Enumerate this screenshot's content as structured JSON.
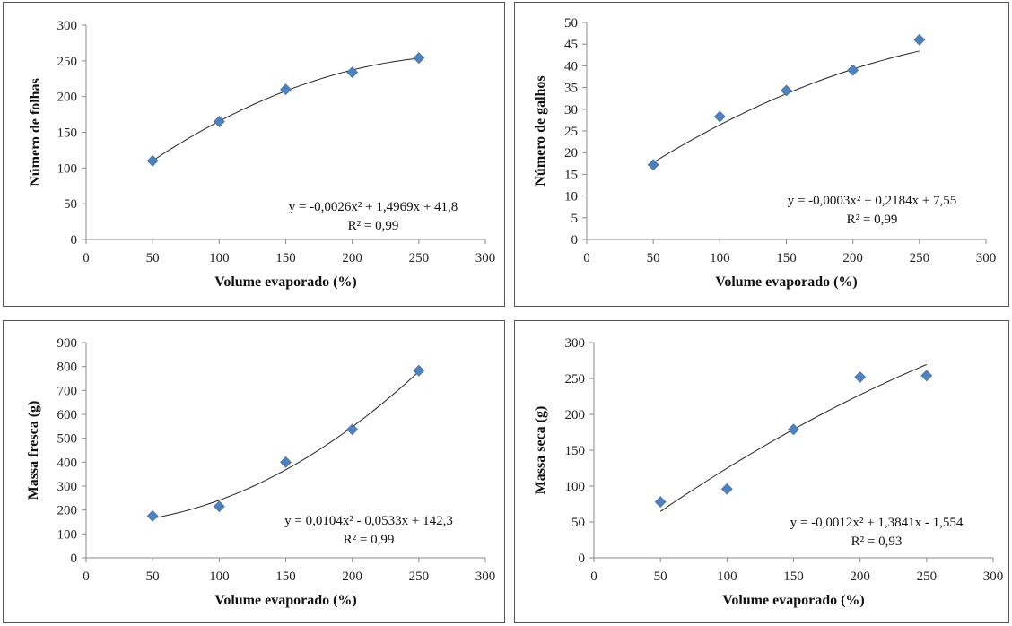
{
  "chart_data": [
    {
      "type": "scatter",
      "xlabel": "Volume evaporado (%)",
      "ylabel": "Número de folhas",
      "xlim": [
        0,
        300
      ],
      "ylim": [
        0,
        300
      ],
      "xticks": [
        "0",
        "50",
        "100",
        "150",
        "200",
        "250",
        "300"
      ],
      "yticks": [
        "0",
        "50",
        "100",
        "150",
        "200",
        "250",
        "300"
      ],
      "x": [
        50,
        100,
        150,
        200,
        250
      ],
      "y": [
        110,
        165,
        210,
        234,
        254
      ],
      "trendline": {
        "kind": "polynomial",
        "coefficients": [
          -0.0026,
          1.4969,
          41.8
        ]
      },
      "equation": "y = -0,0026x² + 1,4969x + 41,8",
      "r2": "R² = 0,99",
      "grid": false,
      "marker_color": "#4f81bd"
    },
    {
      "type": "scatter",
      "xlabel": "Volume evaporado (%)",
      "ylabel": "Número de galhos",
      "xlim": [
        0,
        300
      ],
      "ylim": [
        0,
        50
      ],
      "xticks": [
        "0",
        "50",
        "100",
        "150",
        "200",
        "250",
        "300"
      ],
      "yticks": [
        "0",
        "5",
        "10",
        "15",
        "20",
        "25",
        "30",
        "35",
        "40",
        "45",
        "50"
      ],
      "x": [
        50,
        100,
        150,
        200,
        250
      ],
      "y": [
        17.2,
        28.3,
        34.3,
        39,
        46
      ],
      "trendline": {
        "kind": "polynomial",
        "coefficients": [
          -0.0003,
          0.2184,
          7.55
        ]
      },
      "equation": "y = -0,0003x² + 0,2184x + 7,55",
      "r2": "R² = 0,99",
      "grid": false,
      "marker_color": "#4f81bd"
    },
    {
      "type": "scatter",
      "xlabel": "Volume evaporado (%)",
      "ylabel": "Massa fresca (g)",
      "xlim": [
        0,
        300
      ],
      "ylim": [
        0,
        900
      ],
      "xticks": [
        "0",
        "50",
        "100",
        "150",
        "200",
        "250",
        "300"
      ],
      "yticks": [
        "0",
        "100",
        "200",
        "300",
        "400",
        "500",
        "600",
        "700",
        "800",
        "900"
      ],
      "x": [
        50,
        100,
        150,
        200,
        250
      ],
      "y": [
        175,
        215,
        400,
        537,
        783
      ],
      "trendline": {
        "kind": "polynomial",
        "coefficients": [
          0.0104,
          -0.0533,
          142.3
        ]
      },
      "equation": "y = 0,0104x² - 0,0533x + 142,3",
      "r2": "R² = 0,99",
      "grid": false,
      "marker_color": "#4f81bd"
    },
    {
      "type": "scatter",
      "xlabel": "Volume evaporado (%)",
      "ylabel": "Massa seca (g)",
      "xlim": [
        0,
        300
      ],
      "ylim": [
        0,
        300
      ],
      "xticks": [
        "0",
        "50",
        "100",
        "150",
        "200",
        "250",
        "300"
      ],
      "yticks": [
        "0",
        "50",
        "100",
        "150",
        "200",
        "250",
        "300"
      ],
      "x": [
        50,
        100,
        150,
        200,
        250
      ],
      "y": [
        78,
        96,
        179,
        252,
        254
      ],
      "trendline": {
        "kind": "polynomial",
        "coefficients": [
          -0.0012,
          1.3841,
          -1.554
        ]
      },
      "equation": "y = -0,0012x² + 1,3841x - 1,554",
      "r2": "R² = 0,93",
      "grid": false,
      "marker_color": "#4f81bd"
    }
  ]
}
